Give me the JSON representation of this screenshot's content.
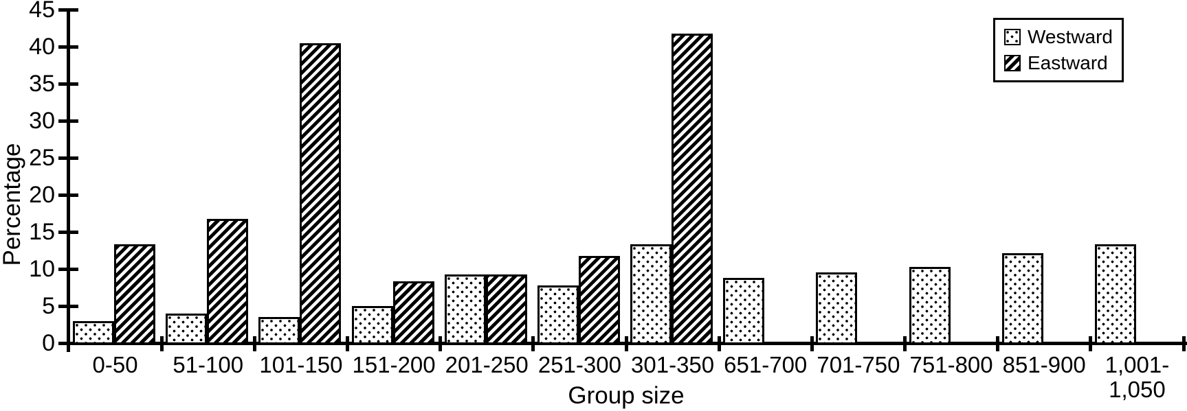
{
  "chart_data": {
    "type": "bar",
    "title": "",
    "xlabel": "Group size",
    "ylabel": "Percentage",
    "ylim": [
      0,
      45
    ],
    "ytick_step": 5,
    "grid": false,
    "legend_position": "top-right",
    "colors": {
      "foreground": "#000000",
      "background": "#ffffff"
    },
    "categories": [
      "0-50",
      "51-100",
      "101-150",
      "151-200",
      "201-250",
      "251-300",
      "301-350",
      "651-700",
      "701-750",
      "751-800",
      "851-900",
      "1,001-\n1,050"
    ],
    "series": [
      {
        "name": "Westward",
        "pattern": "dots",
        "values": [
          3.0,
          4.0,
          3.5,
          5.0,
          9.3,
          7.8,
          13.3,
          8.8,
          9.5,
          10.3,
          12.1,
          13.3
        ]
      },
      {
        "name": "Eastward",
        "pattern": "diagonal-stripes",
        "values": [
          13.3,
          16.8,
          40.5,
          8.3,
          9.3,
          11.8,
          41.8,
          null,
          null,
          null,
          null,
          null
        ]
      }
    ]
  }
}
